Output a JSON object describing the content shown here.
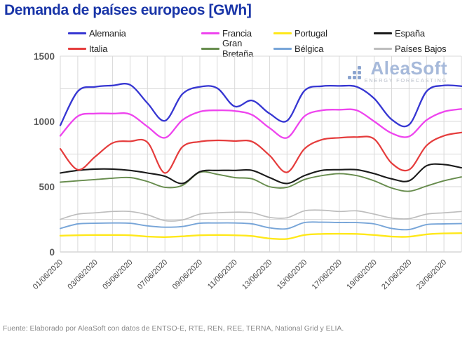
{
  "title": "Demanda de países europeos [GWh]",
  "footer": "Fuente: Elaborado por AleaSoft con datos de ENTSO-E, RTE, REN, REE, TERNA, National Grid y ELIA.",
  "logo": {
    "name": "AleaSoft",
    "tagline": "ENERGY FORECASTING"
  },
  "ui_colors": {
    "title": "#1935a8",
    "grid": "#d9d9d9",
    "axis_line": "#c0c0c0",
    "y_tick_label": "#595959",
    "x_tick_label": "#474747",
    "logo_blue": "#a6b9da"
  },
  "chart_data": {
    "type": "line",
    "title": "Demanda de países europeos [GWh]",
    "xlabel": "",
    "ylabel": "",
    "ylim": [
      0,
      1500
    ],
    "yticks": [
      0,
      500,
      1000,
      1500
    ],
    "y_minor_grid_step": 250,
    "grid": "on",
    "legend_position": "top",
    "x_tick_labels": [
      "01/06/2020",
      "03/06/2020",
      "05/06/2020",
      "07/06/2020",
      "09/06/2020",
      "11/06/2020",
      "13/06/2020",
      "15/06/2020",
      "17/06/2020",
      "19/06/2020",
      "21/06/2020",
      "23/06/2020"
    ],
    "x_description": "valores diarios del 01/06/2020 al 24/06/2020",
    "series": [
      {
        "name": "Países Bajos",
        "color": "#bdbdbd",
        "values": [
          250,
          290,
          300,
          310,
          310,
          285,
          240,
          245,
          290,
          300,
          305,
          300,
          265,
          262,
          315,
          320,
          310,
          315,
          290,
          260,
          255,
          290,
          300,
          310
        ]
      },
      {
        "name": "Bélgica",
        "color": "#77a5d8",
        "values": [
          180,
          215,
          220,
          222,
          220,
          200,
          190,
          195,
          220,
          222,
          222,
          215,
          185,
          178,
          225,
          228,
          226,
          225,
          215,
          180,
          172,
          210,
          215,
          217
        ]
      },
      {
        "name": "Portugal",
        "color": "#ffe81a",
        "values": [
          125,
          128,
          130,
          130,
          128,
          118,
          114,
          120,
          128,
          130,
          128,
          122,
          103,
          100,
          130,
          138,
          139,
          138,
          130,
          118,
          117,
          135,
          142,
          144
        ]
      },
      {
        "name": "Gran Bretaña",
        "color": "#678c4d",
        "values": [
          535,
          545,
          555,
          565,
          570,
          540,
          495,
          510,
          610,
          595,
          570,
          560,
          500,
          495,
          555,
          585,
          600,
          585,
          545,
          490,
          465,
          505,
          545,
          575
        ]
      },
      {
        "name": "España",
        "color": "#1a1a1a",
        "values": [
          605,
          625,
          635,
          635,
          625,
          605,
          580,
          525,
          615,
          625,
          625,
          625,
          570,
          525,
          585,
          625,
          630,
          630,
          600,
          560,
          545,
          660,
          670,
          645
        ]
      },
      {
        "name": "Italia",
        "color": "#e53c3c",
        "values": [
          790,
          630,
          730,
          835,
          848,
          840,
          605,
          805,
          845,
          855,
          850,
          845,
          740,
          610,
          790,
          860,
          875,
          880,
          865,
          680,
          630,
          815,
          890,
          915
        ]
      },
      {
        "name": "Francia",
        "color": "#ee44ee",
        "values": [
          890,
          1040,
          1060,
          1060,
          1055,
          960,
          875,
          1010,
          1075,
          1085,
          1080,
          1050,
          950,
          875,
          1040,
          1085,
          1090,
          1085,
          1000,
          910,
          885,
          1010,
          1075,
          1095
        ]
      },
      {
        "name": "Alemania",
        "color": "#3636d2",
        "values": [
          970,
          1230,
          1265,
          1275,
          1280,
          1140,
          1005,
          1210,
          1265,
          1255,
          1115,
          1160,
          1060,
          1005,
          1235,
          1270,
          1272,
          1265,
          1175,
          1015,
          975,
          1230,
          1275,
          1270
        ]
      }
    ]
  }
}
